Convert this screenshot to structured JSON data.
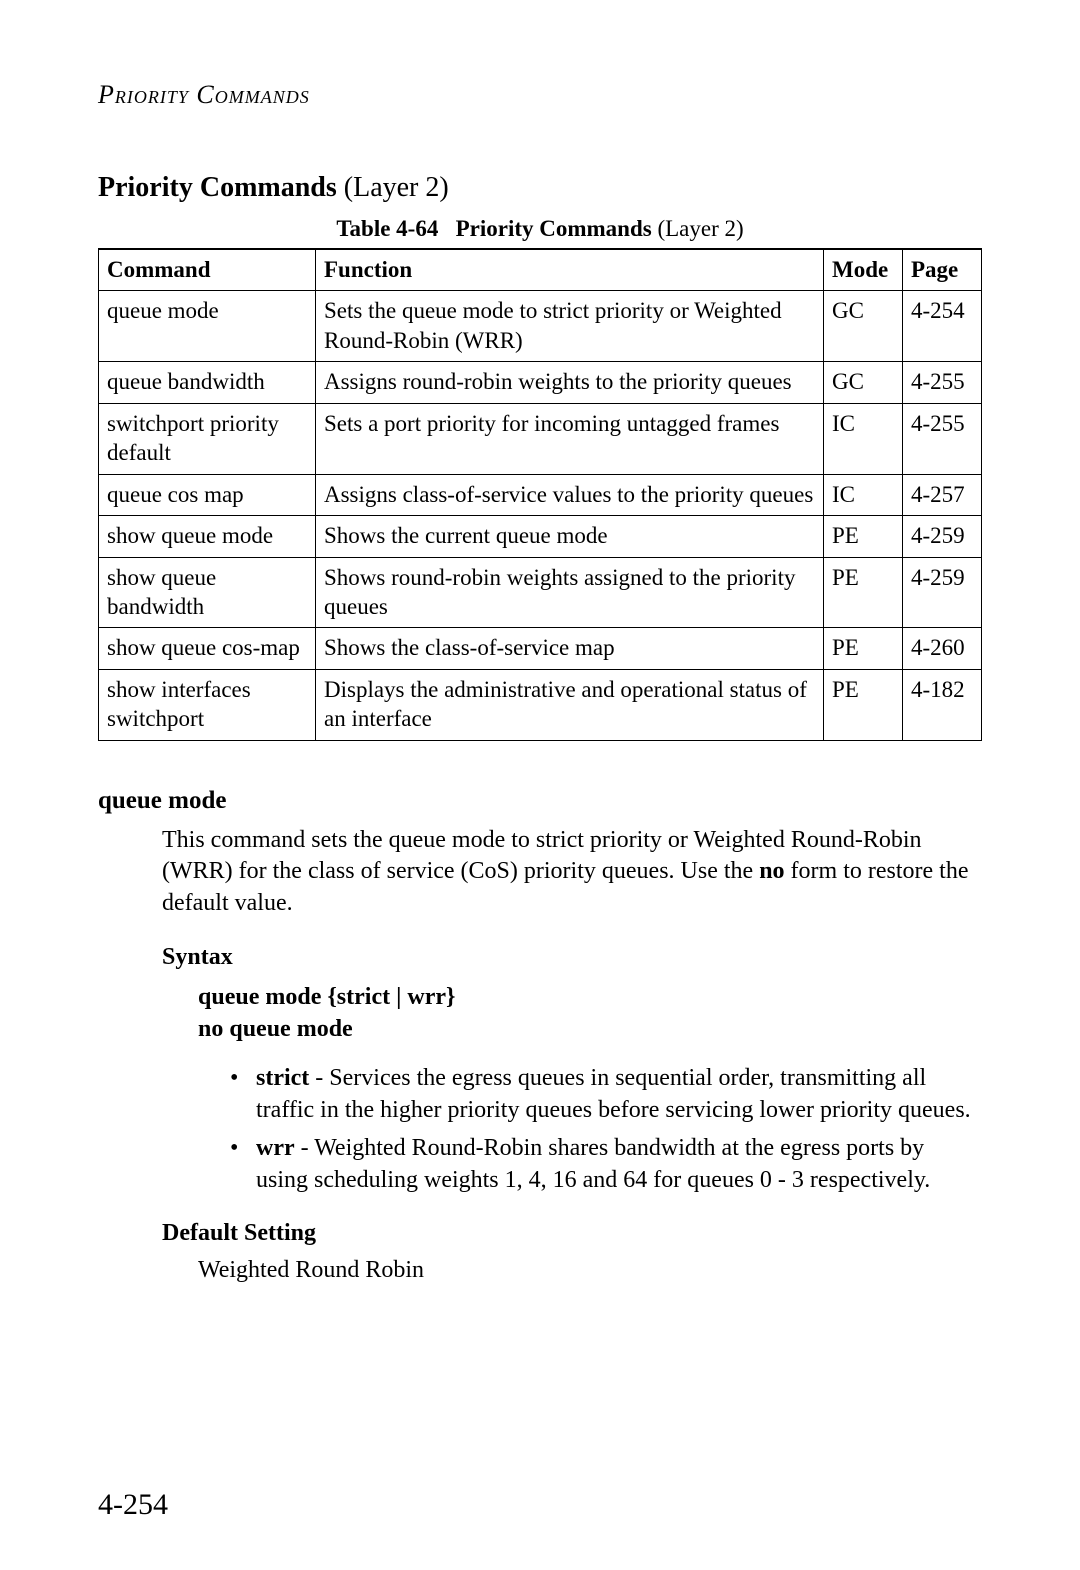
{
  "runningHead": "Priority Commands",
  "section": {
    "titleBold": "Priority Commands",
    "titleRest": " (Layer 2)"
  },
  "table": {
    "captionLabel": "Table 4-64",
    "captionTitle": "Priority Commands",
    "captionRest": " (Layer 2)",
    "columns": [
      "Command",
      "Function",
      "Mode",
      "Page"
    ],
    "rows": [
      {
        "command": "queue mode",
        "function": "Sets the queue mode to strict priority or Weighted Round-Robin (WRR)",
        "mode": "GC",
        "page": "4-254"
      },
      {
        "command": "queue bandwidth",
        "function": "Assigns round-robin weights to the priority queues",
        "mode": "GC",
        "page": "4-255"
      },
      {
        "command": "switchport priority default",
        "function": "Sets a port priority for incoming untagged frames",
        "mode": "IC",
        "page": "4-255"
      },
      {
        "command": "queue cos map",
        "function": "Assigns class-of-service values to the priority queues",
        "mode": "IC",
        "page": "4-257"
      },
      {
        "command": "show queue mode",
        "function": "Shows the current queue mode",
        "mode": "PE",
        "page": "4-259"
      },
      {
        "command": "show queue bandwidth",
        "function": "Shows round-robin weights assigned to the priority queues",
        "mode": "PE",
        "page": "4-259"
      },
      {
        "command": "show queue cos-map",
        "function": "Shows the class-of-service map",
        "mode": "PE",
        "page": "4-260"
      },
      {
        "command": "show interfaces switchport",
        "function": "Displays the administrative and operational status of an interface",
        "mode": "PE",
        "page": "4-182"
      }
    ]
  },
  "command": {
    "name": "queue mode",
    "descPre": "This command sets the queue mode to strict priority or Weighted Round-Robin (WRR) for the class of service (CoS) priority queues. Use the ",
    "descBold": "no",
    "descPost": " form to restore the default value.",
    "syntaxLabel": "Syntax",
    "syntaxLine1": "queue mode {strict | wrr}",
    "syntaxLine2": "no queue mode",
    "params": [
      {
        "term": "strict",
        "text": " - Services the egress queues in sequential order, transmitting all traffic in the higher priority queues before servicing lower priority queues."
      },
      {
        "term": "wrr",
        "text": " - Weighted Round-Robin shares bandwidth at the egress ports by using scheduling weights 1, 4, 16 and 64 for queues 0 - 3 respectively."
      }
    ],
    "defaultLabel": "Default Setting",
    "defaultValue": "Weighted Round Robin"
  },
  "pageNumber": "4-254"
}
